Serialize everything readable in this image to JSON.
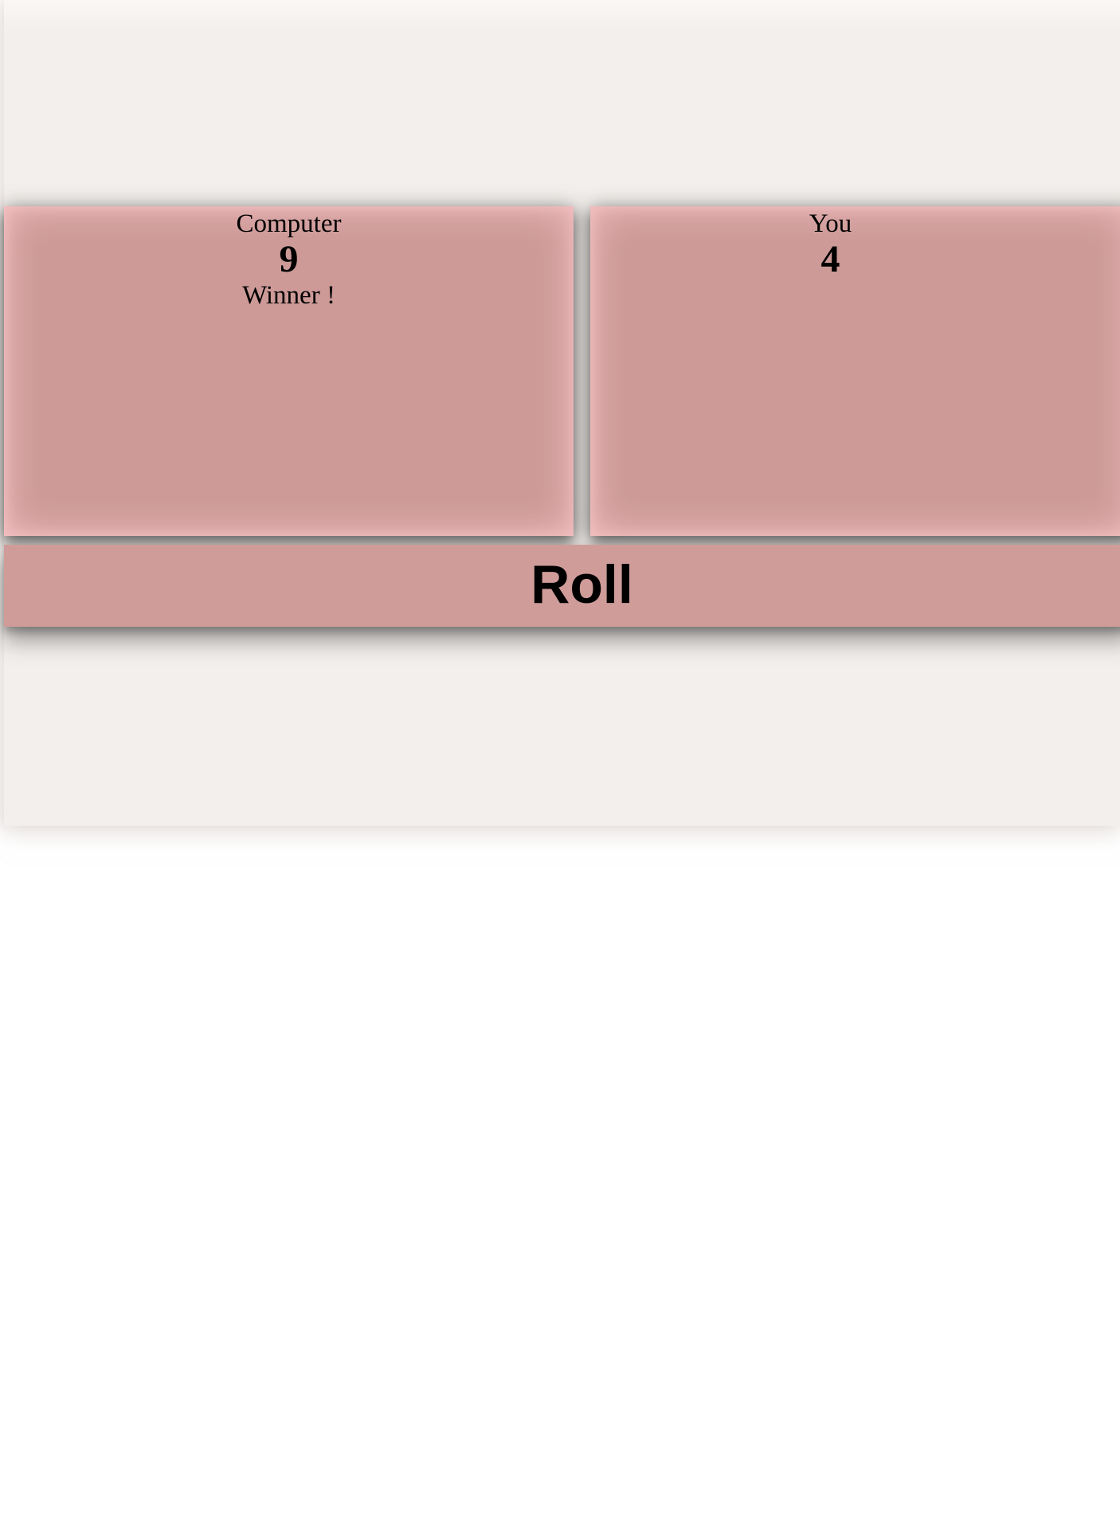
{
  "players": {
    "computer": {
      "name": "Computer",
      "score": "9",
      "status": "Winner !"
    },
    "you": {
      "name": "You",
      "score": "4",
      "status": ""
    }
  },
  "controls": {
    "roll_label": "Roll"
  },
  "colors": {
    "page_background": "#f3efec",
    "panel": "#cd9a98",
    "panel_glow": "#f8c3c5",
    "button": "#cf9c99",
    "text": "#000000"
  }
}
